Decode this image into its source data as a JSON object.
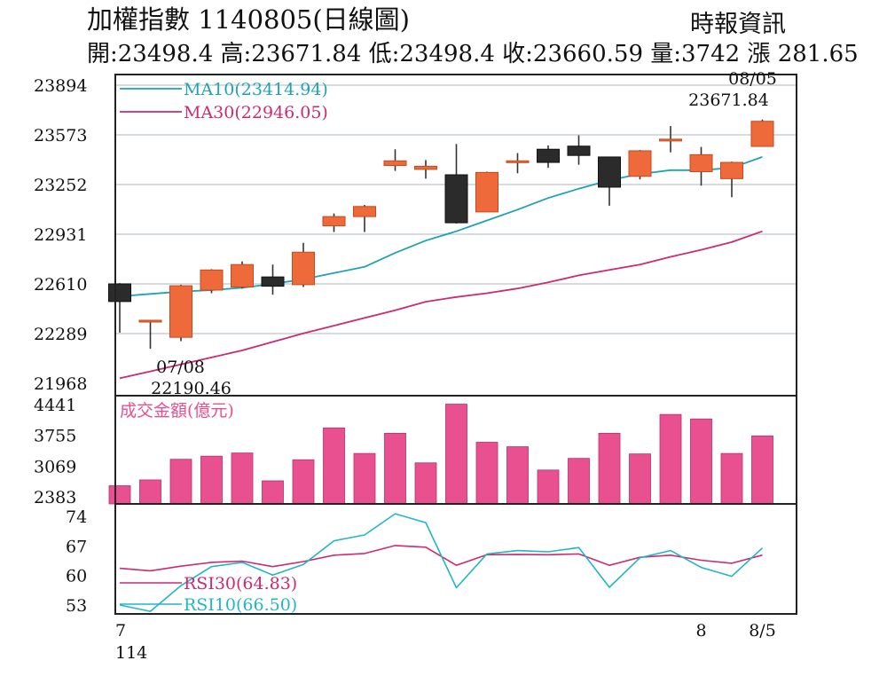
{
  "header": {
    "title": "加權指數 1140805(日線圖)",
    "source": "時報資訊",
    "ohlc": "開:23498.4 高:23671.84 低:23498.4 收:23660.59 量:3742 漲 281.65"
  },
  "colors": {
    "up": "#ee6a3a",
    "down": "#2b2b2b",
    "ma10": "#1fa3b4",
    "ma30": "#cc2a72",
    "volume": "#e9508f",
    "rsi30": "#cc2a72",
    "rsi10": "#22b5c8",
    "grid": "#c9cfd6"
  },
  "chart_data": [
    {
      "type": "candlestick",
      "y_ticks": [
        21968,
        22289,
        22610,
        22931,
        23252,
        23573,
        23894
      ],
      "ylim": [
        21968,
        23894
      ],
      "grid": true,
      "legend": [
        {
          "key": "ma10",
          "label": "MA10(23414.94)"
        },
        {
          "key": "ma30",
          "label": "MA30(22946.05)"
        }
      ],
      "candles": [
        {
          "o": 22610,
          "h": 22615,
          "c": 22496,
          "l": 22295
        },
        {
          "o": 22375,
          "h": 22375,
          "c": 22375,
          "l": 22190.46
        },
        {
          "o": 22265,
          "h": 22605,
          "c": 22598,
          "l": 22240
        },
        {
          "o": 22570,
          "h": 22705,
          "c": 22700,
          "l": 22550
        },
        {
          "o": 22590,
          "h": 22755,
          "c": 22735,
          "l": 22580
        },
        {
          "o": 22655,
          "h": 22735,
          "c": 22595,
          "l": 22540
        },
        {
          "o": 22605,
          "h": 22875,
          "c": 22815,
          "l": 22590
        },
        {
          "o": 22985,
          "h": 23065,
          "c": 23045,
          "l": 22945
        },
        {
          "o": 23045,
          "h": 23120,
          "c": 23110,
          "l": 22945
        },
        {
          "o": 23375,
          "h": 23480,
          "c": 23405,
          "l": 23340
        },
        {
          "o": 23350,
          "h": 23410,
          "c": 23370,
          "l": 23290
        },
        {
          "o": 23315,
          "h": 23514,
          "c": 23005,
          "l": 23000
        },
        {
          "o": 23075,
          "h": 23335,
          "c": 23330,
          "l": 23075
        },
        {
          "o": 23405,
          "h": 23455,
          "c": 23405,
          "l": 23325
        },
        {
          "o": 23480,
          "h": 23505,
          "c": 23395,
          "l": 23360
        },
        {
          "o": 23500,
          "h": 23570,
          "c": 23440,
          "l": 23380
        },
        {
          "o": 23430,
          "h": 23430,
          "c": 23235,
          "l": 23115
        },
        {
          "o": 23305,
          "h": 23475,
          "c": 23470,
          "l": 23285
        },
        {
          "o": 23535,
          "h": 23630,
          "c": 23545,
          "l": 23460
        },
        {
          "o": 23335,
          "h": 23495,
          "c": 23445,
          "l": 23245
        },
        {
          "o": 23290,
          "h": 23400,
          "c": 23395,
          "l": 23170
        },
        {
          "o": 23498.4,
          "h": 23671.84,
          "c": 23660.59,
          "l": 23498.4
        }
      ],
      "ma10": [
        22530,
        22545,
        22560,
        22570,
        22585,
        22610,
        22640,
        22680,
        22720,
        22810,
        22890,
        22950,
        23020,
        23090,
        23165,
        23225,
        23280,
        23320,
        23345,
        23345,
        23360,
        23430
      ],
      "ma30": [
        22000,
        22045,
        22090,
        22135,
        22180,
        22235,
        22290,
        22340,
        22390,
        22440,
        22495,
        22525,
        22550,
        22580,
        22620,
        22665,
        22700,
        22735,
        22785,
        22830,
        22880,
        22950
      ],
      "annotations": [
        {
          "date": "07/08",
          "value": "22190.46",
          "candle": 1,
          "kind": "low"
        },
        {
          "date": "08/05",
          "value": "23671.84",
          "candle": 21,
          "kind": "high"
        }
      ]
    },
    {
      "type": "bar",
      "title": "成交金額(億元)",
      "y_ticks": [
        2383,
        3069,
        3755,
        4441
      ],
      "ylim": [
        2383,
        4441
      ],
      "values": [
        2630,
        2760,
        3220,
        3290,
        3360,
        2740,
        3210,
        3920,
        3350,
        3800,
        3140,
        4450,
        3600,
        3500,
        2980,
        3240,
        3800,
        3340,
        4220,
        4120,
        3350,
        3742
      ]
    },
    {
      "type": "line",
      "y_ticks": [
        53,
        60,
        67,
        74
      ],
      "ylim": [
        53,
        74
      ],
      "grid": false,
      "legend": [
        {
          "key": "rsi30",
          "label": "RSI30(64.83)"
        },
        {
          "key": "rsi10",
          "label": "RSI10(66.50)"
        }
      ],
      "series": [
        {
          "name": "RSI30(64.83)",
          "key": "rsi30",
          "values": [
            61.7,
            61.1,
            62.2,
            63.1,
            63.4,
            62.1,
            63.3,
            64.8,
            65.2,
            67.1,
            66.7,
            62.4,
            64.9,
            65.0,
            64.9,
            65.1,
            62.4,
            64.3,
            64.8,
            63.6,
            62.9,
            64.83
          ]
        },
        {
          "name": "RSI10(66.50)",
          "key": "rsi10",
          "values": [
            53.0,
            51.5,
            57.6,
            62.1,
            63.1,
            60.1,
            62.6,
            68.2,
            69.6,
            74.6,
            72.5,
            57.1,
            65.1,
            65.9,
            65.6,
            66.6,
            57.2,
            64.2,
            65.9,
            61.9,
            59.8,
            66.5
          ]
        }
      ]
    }
  ],
  "x_axis": [
    {
      "candle": 0,
      "label": "7"
    },
    {
      "candle": 0,
      "label": "114",
      "second_line": true
    },
    {
      "candle": 19,
      "label": "8"
    },
    {
      "candle": 21,
      "label": "8/5"
    }
  ]
}
